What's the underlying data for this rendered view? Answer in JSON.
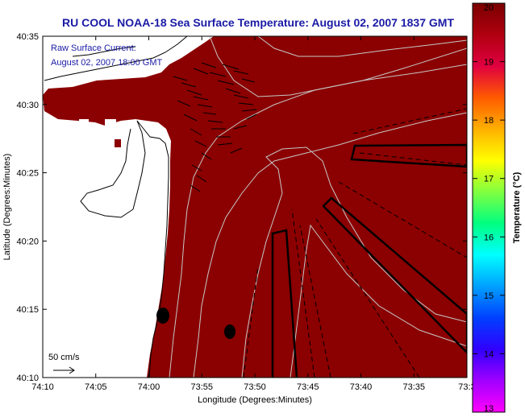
{
  "title": "RU COOL  NOAA-18  Sea Surface Temperature:  August 02, 2007 1837 GMT",
  "legend": {
    "line1": "Raw Surface Current:",
    "line2": "August 02, 2007 18:00 GMT",
    "scale_label": "50 cm/s"
  },
  "xaxis": {
    "label": "Longitude (Degrees:Minutes)",
    "ticks": [
      "74:10",
      "74:05",
      "74:00",
      "73:55",
      "73:50",
      "73:45",
      "73:40",
      "73:35",
      "73:3"
    ]
  },
  "yaxis": {
    "label": "Latitude (Degrees:Minutes)",
    "ticks": [
      "40:35",
      "40:30",
      "40:25",
      "40:20",
      "40:15",
      "40:10"
    ]
  },
  "colorbar": {
    "label": "Temperature (°C)",
    "ticks": [
      "20",
      "19",
      "18",
      "17",
      "16",
      "15",
      "14",
      "13"
    ],
    "colors": [
      "#7a0000",
      "#b00010",
      "#e00040",
      "#ff5a00",
      "#ffb000",
      "#ffff00",
      "#80ff40",
      "#00ff80",
      "#00ffff",
      "#00a0ff",
      "#0040ff",
      "#3000ff",
      "#a000ff",
      "#ff00ff"
    ]
  },
  "colors": {
    "sea": "#8b0000",
    "land": "#ffffff",
    "title": "#1a1aa6"
  }
}
